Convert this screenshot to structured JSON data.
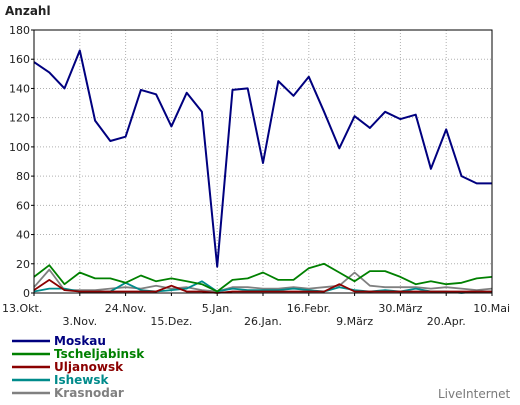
{
  "chart_data": {
    "type": "line",
    "ylabel": "Anzahl",
    "ylim": [
      0,
      180
    ],
    "yticks": [
      0,
      20,
      40,
      60,
      80,
      100,
      120,
      140,
      160,
      180
    ],
    "grid": true,
    "x_tick_labels": [
      {
        "label": "13.Okt.",
        "index": 0
      },
      {
        "label": "3.Nov.",
        "index": 3
      },
      {
        "label": "24.Nov.",
        "index": 6
      },
      {
        "label": "15.Dez.",
        "index": 9
      },
      {
        "label": "5.Jan.",
        "index": 12
      },
      {
        "label": "26.Jan.",
        "index": 15
      },
      {
        "label": "16.Febr.",
        "index": 18
      },
      {
        "label": "9.März",
        "index": 21
      },
      {
        "label": "30.März",
        "index": 24
      },
      {
        "label": "20.Apr.",
        "index": 27
      },
      {
        "label": "10.Mai",
        "index": 30
      }
    ],
    "series": [
      {
        "name": "Moskau",
        "color": "#00007f",
        "values": [
          158,
          151,
          140,
          166,
          118,
          104,
          107,
          139,
          136,
          114,
          137,
          124,
          18,
          139,
          140,
          89,
          145,
          135,
          148,
          124,
          99,
          121,
          113,
          124,
          119,
          122,
          85,
          112,
          80,
          75,
          75
        ]
      },
      {
        "name": "Tscheljabinsk",
        "color": "#008000",
        "values": [
          11,
          19,
          6,
          14,
          10,
          10,
          7,
          12,
          8,
          10,
          8,
          6,
          1,
          9,
          10,
          14,
          9,
          9,
          17,
          20,
          14,
          8,
          15,
          15,
          11,
          6,
          8,
          6,
          7,
          10,
          11
        ]
      },
      {
        "name": "Uljanowsk",
        "color": "#8b0000",
        "values": [
          2,
          9,
          2,
          1,
          1,
          1,
          1,
          1,
          1,
          5,
          1,
          1,
          0,
          1,
          1,
          1,
          1,
          1,
          1,
          1,
          6,
          1,
          1,
          1,
          1,
          1,
          1,
          1,
          1,
          1,
          1
        ]
      },
      {
        "name": "Ishewsk",
        "color": "#008b8b",
        "values": [
          1,
          3,
          3,
          1,
          1,
          1,
          7,
          2,
          1,
          2,
          3,
          8,
          1,
          3,
          2,
          2,
          2,
          3,
          2,
          1,
          4,
          2,
          1,
          2,
          1,
          3,
          1,
          1,
          0,
          1,
          1
        ]
      },
      {
        "name": "Krasnodar",
        "color": "#808080",
        "values": [
          4,
          16,
          2,
          2,
          2,
          3,
          4,
          3,
          5,
          3,
          4,
          2,
          1,
          4,
          4,
          3,
          3,
          4,
          3,
          4,
          5,
          14,
          5,
          4,
          4,
          4,
          3,
          4,
          3,
          2,
          3
        ]
      }
    ]
  },
  "brand": "LiveInternet"
}
